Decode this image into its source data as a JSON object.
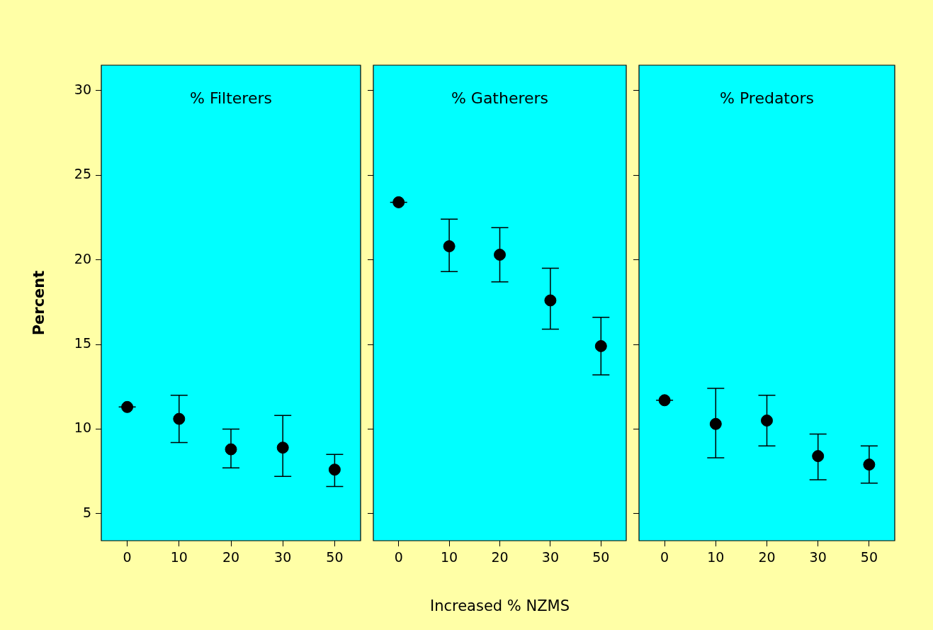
{
  "chart_data": [
    {
      "type": "scatter",
      "title": "% Filterers",
      "ylabel": "Percent",
      "categories": [
        "0",
        "10",
        "20",
        "30",
        "50"
      ],
      "values": [
        11.3,
        10.6,
        8.8,
        8.9,
        7.6
      ],
      "errors": [
        [
          11.3,
          11.3
        ],
        [
          9.2,
          12.0
        ],
        [
          7.7,
          10.0
        ],
        [
          7.2,
          10.8
        ],
        [
          6.6,
          8.5
        ]
      ],
      "color": "#000000",
      "marker": "circle",
      "grid": false,
      "ylim": [
        3.4,
        31.5
      ],
      "yticks": [
        5,
        10,
        15,
        20,
        25,
        30
      ]
    },
    {
      "type": "scatter",
      "title": "% Gatherers",
      "xlabel": "Increased % NZMS",
      "categories": [
        "0",
        "10",
        "20",
        "30",
        "50"
      ],
      "values": [
        23.4,
        20.8,
        20.3,
        17.6,
        14.9
      ],
      "errors": [
        [
          23.4,
          23.4
        ],
        [
          19.3,
          22.4
        ],
        [
          18.7,
          21.9
        ],
        [
          15.9,
          19.5
        ],
        [
          13.2,
          16.6
        ]
      ],
      "color": "#000000",
      "marker": "circle",
      "grid": false,
      "ylim": [
        3.4,
        31.5
      ],
      "yticks": [
        5,
        10,
        15,
        20,
        25,
        30
      ],
      "tick_labels": "x"
    },
    {
      "type": "scatter",
      "title": "% Predators",
      "categories": [
        "0",
        "10",
        "20",
        "30",
        "50"
      ],
      "values": [
        11.7,
        10.3,
        10.5,
        8.4,
        7.9
      ],
      "errors": [
        [
          11.7,
          11.7
        ],
        [
          8.3,
          12.4
        ],
        [
          9.0,
          12.0
        ],
        [
          7.0,
          9.7
        ],
        [
          6.8,
          9.0
        ]
      ],
      "color": "#000000",
      "marker": "circle",
      "grid": false,
      "ylim": [
        3.4,
        31.5
      ],
      "yticks": [
        5,
        10,
        15,
        20,
        25,
        30
      ],
      "tick_labels": "x"
    }
  ]
}
